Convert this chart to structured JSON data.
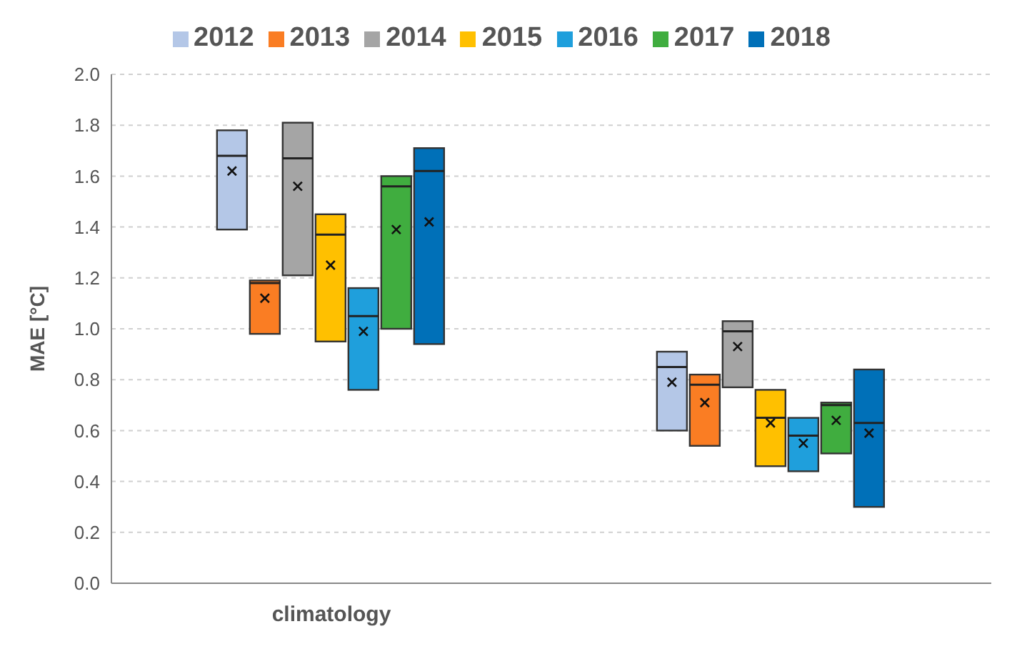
{
  "chart_data": {
    "type": "box",
    "ylabel": "MAE [°C]",
    "categories": [
      "climatology",
      null
    ],
    "ylim": [
      0,
      2
    ],
    "yticks": [
      {
        "value": 0,
        "label": "0.0"
      },
      {
        "value": 0.2,
        "label": "0.2"
      },
      {
        "value": 0.4,
        "label": "0.4"
      },
      {
        "value": 0.6,
        "label": "0.6"
      },
      {
        "value": 0.8,
        "label": "0.8"
      },
      {
        "value": 1,
        "label": "1.0"
      },
      {
        "value": 1.2,
        "label": "1.2"
      },
      {
        "value": 1.4,
        "label": "1.4"
      },
      {
        "value": 1.6,
        "label": "1.6"
      },
      {
        "value": 1.8,
        "label": "1.8"
      },
      {
        "value": 2,
        "label": "2.0"
      }
    ],
    "grid": "y",
    "legend": "top",
    "series": [
      {
        "name": "2012",
        "color": "#b4c7e7",
        "boxes": [
          {
            "low": 1.39,
            "q1": 1.39,
            "median": 1.68,
            "q3": 1.78,
            "high": 1.78,
            "mean": 1.62
          },
          {
            "low": 0.6,
            "q1": 0.6,
            "median": 0.85,
            "q3": 0.91,
            "high": 0.91,
            "mean": 0.79
          }
        ]
      },
      {
        "name": "2013",
        "color": "#fa7d23",
        "boxes": [
          {
            "low": 0.98,
            "q1": 0.98,
            "median": 1.18,
            "q3": 1.19,
            "high": 1.19,
            "mean": 1.12
          },
          {
            "low": 0.54,
            "q1": 0.54,
            "median": 0.78,
            "q3": 0.82,
            "high": 0.82,
            "mean": 0.71
          }
        ]
      },
      {
        "name": "2014",
        "color": "#a5a5a5",
        "boxes": [
          {
            "low": 1.21,
            "q1": 1.21,
            "median": 1.67,
            "q3": 1.81,
            "high": 1.81,
            "mean": 1.56
          },
          {
            "low": 0.77,
            "q1": 0.77,
            "median": 0.99,
            "q3": 1.03,
            "high": 1.03,
            "mean": 0.93
          }
        ]
      },
      {
        "name": "2015",
        "color": "#ffc000",
        "boxes": [
          {
            "low": 0.95,
            "q1": 0.95,
            "median": 1.37,
            "q3": 1.45,
            "high": 1.45,
            "mean": 1.25
          },
          {
            "low": 0.46,
            "q1": 0.46,
            "median": 0.65,
            "q3": 0.76,
            "high": 0.76,
            "mean": 0.63
          }
        ]
      },
      {
        "name": "2016",
        "color": "#1f9fdc",
        "boxes": [
          {
            "low": 0.76,
            "q1": 0.76,
            "median": 1.05,
            "q3": 1.16,
            "high": 1.16,
            "mean": 0.99
          },
          {
            "low": 0.44,
            "q1": 0.44,
            "median": 0.58,
            "q3": 0.65,
            "high": 0.65,
            "mean": 0.55
          }
        ]
      },
      {
        "name": "2017",
        "color": "#40ad3f",
        "boxes": [
          {
            "low": 1.0,
            "q1": 1.0,
            "median": 1.56,
            "q3": 1.6,
            "high": 1.6,
            "mean": 1.39
          },
          {
            "low": 0.51,
            "q1": 0.51,
            "median": 0.7,
            "q3": 0.71,
            "high": 0.71,
            "mean": 0.64
          }
        ]
      },
      {
        "name": "2018",
        "color": "#0070b8",
        "boxes": [
          {
            "low": 0.94,
            "q1": 0.94,
            "median": 1.62,
            "q3": 1.71,
            "high": 1.71,
            "mean": 1.42
          },
          {
            "low": 0.3,
            "q1": 0.3,
            "median": 0.63,
            "q3": 0.84,
            "high": 0.84,
            "mean": 0.59
          }
        ]
      }
    ]
  }
}
